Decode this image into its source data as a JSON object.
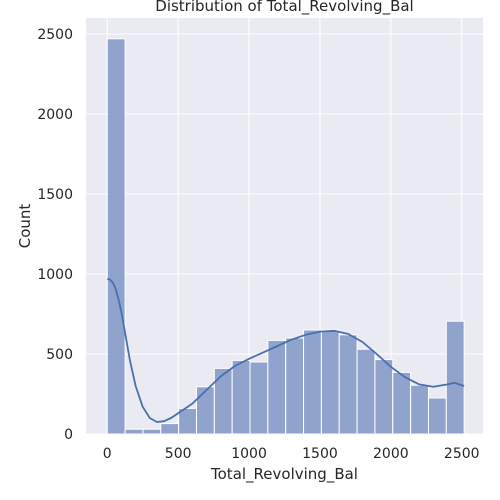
{
  "chart_data": {
    "type": "bar",
    "subtype": "histogram-with-kde",
    "title": "Distribution of Total_Revolving_Bal",
    "xlabel": "Total_Revolving_Bal",
    "ylabel": "Count",
    "xlim": [
      -150,
      2650
    ],
    "ylim": [
      0,
      2600
    ],
    "xticks": [
      0,
      500,
      1000,
      1500,
      2000,
      2500
    ],
    "yticks": [
      0,
      500,
      1000,
      1500,
      2000,
      2500
    ],
    "grid": true,
    "bins": [
      {
        "x0": 0,
        "x1": 125.85,
        "count": 2470
      },
      {
        "x0": 125.85,
        "x1": 251.7,
        "count": 30
      },
      {
        "x0": 251.7,
        "x1": 377.55,
        "count": 30
      },
      {
        "x0": 377.55,
        "x1": 503.4,
        "count": 65
      },
      {
        "x0": 503.4,
        "x1": 629.25,
        "count": 160
      },
      {
        "x0": 629.25,
        "x1": 755.1,
        "count": 295
      },
      {
        "x0": 755.1,
        "x1": 880.95,
        "count": 410
      },
      {
        "x0": 880.95,
        "x1": 1006.8,
        "count": 460
      },
      {
        "x0": 1006.8,
        "x1": 1132.65,
        "count": 450
      },
      {
        "x0": 1132.65,
        "x1": 1258.5,
        "count": 585
      },
      {
        "x0": 1258.5,
        "x1": 1384.35,
        "count": 600
      },
      {
        "x0": 1384.35,
        "x1": 1510.2,
        "count": 650
      },
      {
        "x0": 1510.2,
        "x1": 1636.05,
        "count": 650
      },
      {
        "x0": 1636.05,
        "x1": 1761.9,
        "count": 620
      },
      {
        "x0": 1761.9,
        "x1": 1887.75,
        "count": 530
      },
      {
        "x0": 1887.75,
        "x1": 2013.6,
        "count": 465
      },
      {
        "x0": 2013.6,
        "x1": 2139.45,
        "count": 385
      },
      {
        "x0": 2139.45,
        "x1": 2265.3,
        "count": 305
      },
      {
        "x0": 2265.3,
        "x1": 2391.15,
        "count": 225
      },
      {
        "x0": 2391.15,
        "x1": 2517,
        "count": 705
      }
    ],
    "kde": {
      "x": [
        0,
        20,
        40,
        60,
        80,
        100,
        130,
        160,
        200,
        250,
        300,
        350,
        400,
        450,
        500,
        600,
        700,
        800,
        900,
        1000,
        1100,
        1200,
        1300,
        1400,
        1500,
        1600,
        1700,
        1800,
        1900,
        2000,
        2100,
        2200,
        2300,
        2400,
        2450,
        2517
      ],
      "y": [
        970,
        965,
        945,
        905,
        840,
        760,
        610,
        460,
        300,
        170,
        100,
        75,
        80,
        100,
        130,
        190,
        275,
        360,
        425,
        470,
        510,
        550,
        590,
        620,
        640,
        645,
        625,
        575,
        500,
        420,
        355,
        310,
        295,
        310,
        320,
        300
      ]
    },
    "colors": {
      "bar_fill": "#8fa3cc",
      "bar_stroke": "#ffffff",
      "kde_line": "#4a6fae",
      "plot_background": "#eaeaf2",
      "grid": "#ffffff"
    }
  }
}
